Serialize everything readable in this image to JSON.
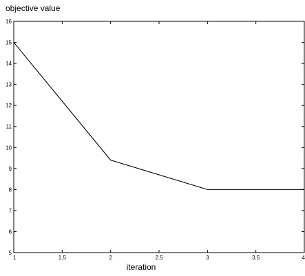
{
  "chart_data": {
    "type": "line",
    "title": "",
    "xlabel": "iteration",
    "ylabel": "objective value",
    "xlim": [
      1,
      4
    ],
    "ylim": [
      5,
      16
    ],
    "xticks": [
      1,
      1.5,
      2,
      2.5,
      3,
      3.5,
      4
    ],
    "xtick_labels": [
      "1",
      "1.5",
      "2",
      "2.5",
      "3",
      "3.5",
      "4"
    ],
    "yticks": [
      5,
      6,
      7,
      8,
      9,
      10,
      11,
      12,
      13,
      14,
      15,
      16
    ],
    "ytick_labels": [
      "5",
      "6",
      "7",
      "8",
      "9",
      "10",
      "11",
      "12",
      "13",
      "14",
      "15",
      "16"
    ],
    "grid": false,
    "series": [
      {
        "x": [
          1,
          2,
          3,
          4
        ],
        "y": [
          15,
          9.4,
          8,
          8
        ]
      }
    ],
    "colors": {
      "line": "#000000",
      "axes": "#000000",
      "background": "#ffffff"
    }
  }
}
